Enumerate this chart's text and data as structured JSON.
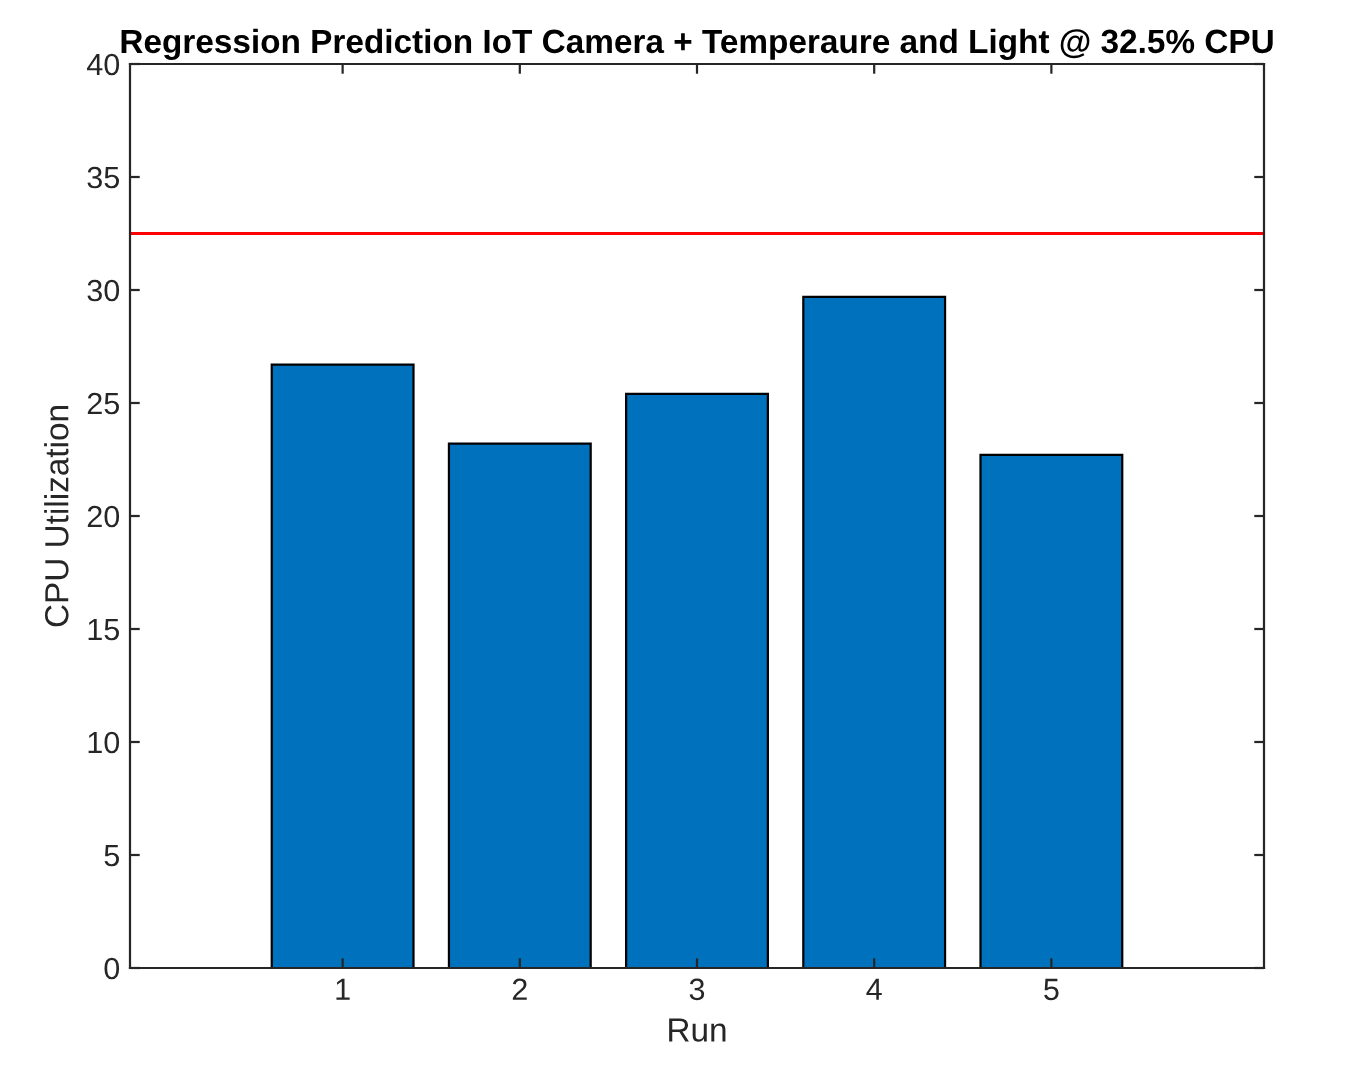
{
  "chart_data": {
    "type": "bar",
    "title": "Regression Prediction IoT Camera + Temperaure and Light @ 32.5% CPU",
    "xlabel": "Run",
    "ylabel": "CPU Utilization",
    "categories": [
      "1",
      "2",
      "3",
      "4",
      "5"
    ],
    "values": [
      26.7,
      23.2,
      25.4,
      29.7,
      22.7
    ],
    "color": "#0072bd",
    "ylim": [
      0,
      40
    ],
    "yticks": [
      0,
      5,
      10,
      15,
      20,
      25,
      30,
      35,
      40
    ],
    "ref_lines": [
      {
        "axis": "y",
        "value": 32.5,
        "color": "#ff0000"
      }
    ],
    "grid": false
  }
}
